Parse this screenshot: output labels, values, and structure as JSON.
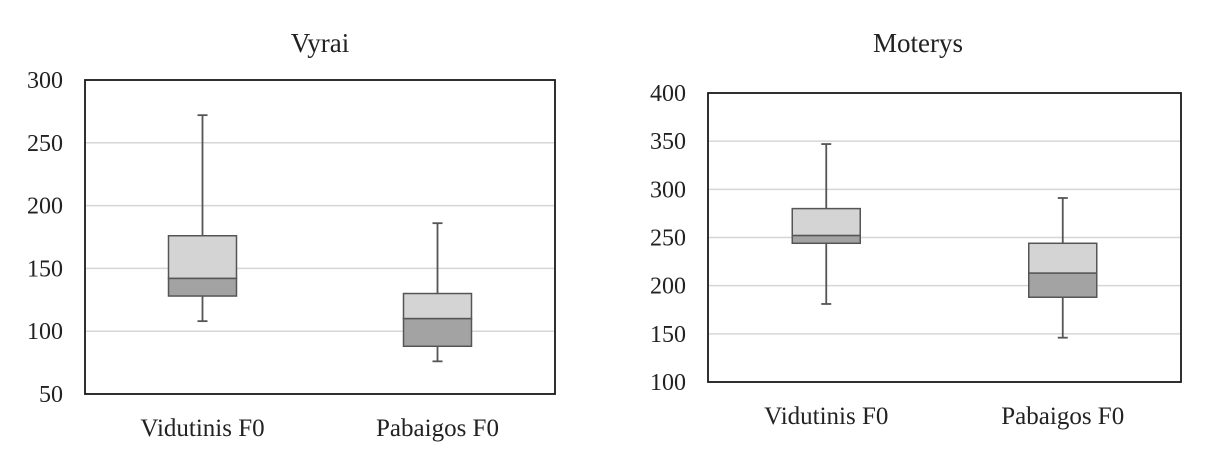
{
  "colors": {
    "upper_box": "#d4d4d4",
    "lower_box": "#a3a3a3",
    "box_stroke": "#555555",
    "whisker": "#555555",
    "grid": "#d6d6d6",
    "frame": "#1a1a1a"
  },
  "chart_data": [
    {
      "type": "box",
      "title": "Vyrai",
      "ylim": [
        50,
        300
      ],
      "yticks": [
        50,
        100,
        150,
        200,
        250,
        300
      ],
      "grid": true,
      "categories": [
        "Vidutinis F0",
        "Pabaigos F0"
      ],
      "boxes": [
        {
          "category": "Vidutinis F0",
          "min": 108,
          "q1": 128,
          "median": 142,
          "q3": 176,
          "max": 272
        },
        {
          "category": "Pabaigos F0",
          "min": 76,
          "q1": 88,
          "median": 110,
          "q3": 130,
          "max": 186
        }
      ]
    },
    {
      "type": "box",
      "title": "Moterys",
      "ylim": [
        100,
        400
      ],
      "yticks": [
        100,
        150,
        200,
        250,
        300,
        350,
        400
      ],
      "grid": true,
      "categories": [
        "Vidutinis F0",
        "Pabaigos F0"
      ],
      "boxes": [
        {
          "category": "Vidutinis F0",
          "min": 181,
          "q1": 244,
          "median": 252,
          "q3": 280,
          "max": 347
        },
        {
          "category": "Pabaigos F0",
          "min": 146,
          "q1": 188,
          "median": 213,
          "q3": 244,
          "max": 291
        }
      ]
    }
  ]
}
